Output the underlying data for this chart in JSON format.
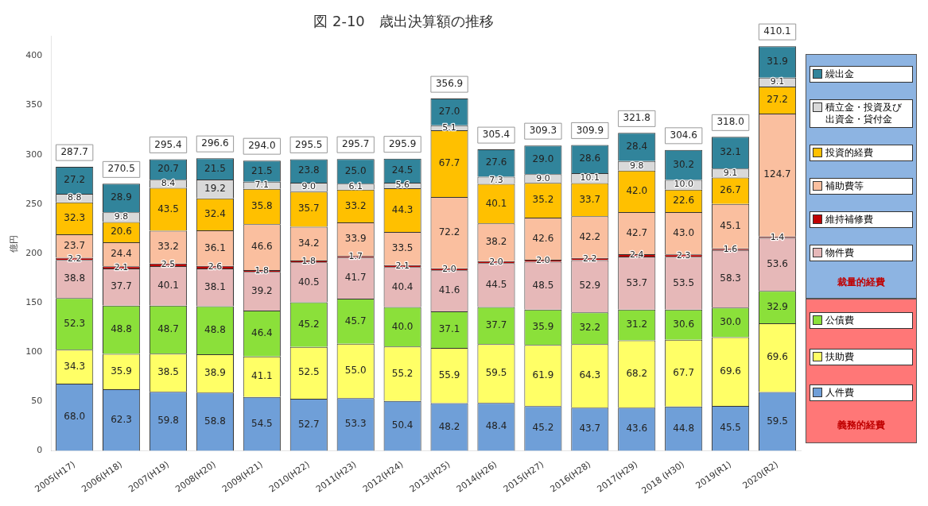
{
  "chart_data": {
    "type": "bar",
    "stacked": true,
    "title": "図 2-10　歳出決算額の推移",
    "ylabel": "億円",
    "categories": [
      "2005(H17)",
      "2006(H18)",
      "2007(H19)",
      "2008(H20)",
      "2009(H21)",
      "2010(H22)",
      "2011(H23)",
      "2012(H24)",
      "2013(H25)",
      "2014(H26)",
      "2015(H27)",
      "2016(H28)",
      "2017(H29)",
      "2018 (H30)",
      "2019(R1)",
      "2020(R2)"
    ],
    "series": [
      {
        "name": "人件費",
        "color": "#6f9fd8",
        "values": [
          68.0,
          62.3,
          59.8,
          58.8,
          54.5,
          52.7,
          53.3,
          50.4,
          48.2,
          48.4,
          45.2,
          43.7,
          43.6,
          44.8,
          45.5,
          59.5
        ],
        "value_labels": [
          "68.0",
          "62.3",
          "59.8",
          "58.8",
          "54.5",
          "52.7",
          "53.3",
          "50.4",
          "48.2",
          "48.4",
          "45.2",
          "43.7",
          "43.6",
          "44.8",
          "45.5",
          "59.5"
        ]
      },
      {
        "name": "扶助費",
        "color": "#ffff66",
        "values": [
          34.3,
          35.9,
          38.5,
          38.9,
          41.1,
          52.5,
          55.0,
          55.2,
          55.9,
          59.5,
          61.9,
          64.3,
          68.2,
          67.7,
          69.6,
          69.6
        ],
        "value_labels": [
          "34.3",
          "35.9",
          "38.5",
          "38.9",
          "41.1",
          "52.5",
          "55.0",
          "55.2",
          "55.9",
          "59.5",
          "61.9",
          "64.3",
          "68.2",
          "67.7",
          "69.6",
          "69.6"
        ]
      },
      {
        "name": "公債費",
        "color": "#8be03a",
        "values": [
          52.3,
          48.8,
          48.7,
          48.8,
          46.4,
          45.2,
          45.7,
          40.0,
          37.1,
          37.7,
          35.9,
          32.2,
          31.2,
          30.6,
          30.0,
          32.9
        ],
        "value_labels": [
          "52.3",
          "48.8",
          "48.7",
          "48.8",
          "46.4",
          "45.2",
          "45.7",
          "40.0",
          "37.1",
          "37.7",
          "35.9",
          "32.2",
          "31.2",
          "30.6",
          "30.0",
          "32.9"
        ]
      },
      {
        "name": "物件費",
        "color": "#e6b8b8",
        "values": [
          38.8,
          37.7,
          40.1,
          38.1,
          39.2,
          40.5,
          41.7,
          40.4,
          41.6,
          44.5,
          48.5,
          52.9,
          53.7,
          53.5,
          58.3,
          53.6
        ],
        "value_labels": [
          "38.8",
          "37.7",
          "40.1",
          "38.1",
          "39.2",
          "40.5",
          "41.7",
          "40.4",
          "41.6",
          "44.5",
          "48.5",
          "52.9",
          "53.7",
          "53.5",
          "58.3",
          "53.6"
        ]
      },
      {
        "name": "維持補修費",
        "color": "#c00000",
        "values": [
          2.2,
          2.1,
          2.5,
          2.6,
          1.8,
          1.8,
          1.7,
          2.1,
          2.0,
          2.0,
          2.0,
          2.2,
          2.4,
          2.3,
          1.6,
          1.4
        ],
        "value_labels": [
          "2.2",
          "2.1",
          "2.5",
          "2.6",
          "1.8",
          "1.8",
          "1.7",
          "2.1",
          "2.0",
          "2.0",
          "2.0",
          "2.2",
          "2.4",
          "2.3",
          "1.6",
          "1.4"
        ]
      },
      {
        "name": "補助費等",
        "color": "#fabf9f",
        "values": [
          23.7,
          24.4,
          33.2,
          36.1,
          46.6,
          34.2,
          33.9,
          33.5,
          72.2,
          38.2,
          42.6,
          42.2,
          42.7,
          43.0,
          45.1,
          124.7
        ],
        "value_labels": [
          "23.7",
          "24.4",
          "33.2",
          "36.1",
          "46.6",
          "34.2",
          "33.9",
          "33.5",
          "72.2",
          "38.2",
          "42.6",
          "42.2",
          "42.7",
          "43.0",
          "45.1",
          "124.7"
        ]
      },
      {
        "name": "投資的経費",
        "color": "#ffc000",
        "values": [
          32.3,
          20.6,
          43.5,
          32.4,
          35.8,
          35.7,
          33.2,
          44.3,
          67.7,
          40.1,
          35.2,
          33.7,
          42.0,
          22.6,
          26.7,
          27.2
        ],
        "value_labels": [
          "32.3",
          "20.6",
          "43.5",
          "32.4",
          "35.8",
          "35.7",
          "33.2",
          "44.3",
          "67.7",
          "40.1",
          "35.2",
          "33.7",
          "42.0",
          "22.6",
          "26.7",
          "27.2"
        ]
      },
      {
        "name": "積立金・投資及び出資金・貸付金",
        "color": "#d9d9d9",
        "values": [
          8.8,
          9.8,
          8.4,
          19.2,
          7.1,
          9.0,
          6.1,
          5.6,
          5.1,
          7.3,
          9.0,
          10.1,
          9.8,
          10.0,
          9.1,
          9.1
        ],
        "value_labels": [
          "8.8",
          "9.8",
          "8.4",
          "19.2",
          "7.1",
          "9.0",
          "6.1",
          "5.6",
          "5.1",
          "7.3",
          "9.0",
          "10.1",
          "9.8",
          "10.0",
          "9.1",
          "9.1"
        ]
      },
      {
        "name": "繰出金",
        "color": "#31849b",
        "values": [
          27.2,
          28.9,
          20.7,
          21.5,
          21.5,
          23.8,
          25.0,
          24.5,
          27.0,
          27.6,
          29.0,
          28.6,
          28.4,
          30.2,
          32.1,
          31.9
        ],
        "value_labels": [
          "27.2",
          "28.9",
          "20.7",
          "21.5",
          "21.5",
          "23.8",
          "25.0",
          "24.5",
          "27.0",
          "27.6",
          "29.0",
          "28.6",
          "28.4",
          "30.2",
          "32.1",
          "31.9"
        ]
      }
    ],
    "totals": [
      "287.7",
      "270.5",
      "295.4",
      "296.6",
      "294.0",
      "295.5",
      "295.7",
      "295.9",
      "356.9",
      "305.4",
      "309.3",
      "309.9",
      "321.8",
      "304.6",
      "318.0",
      "410.1"
    ],
    "ylim": [
      0,
      420
    ],
    "yticks": [
      0,
      50,
      100,
      150,
      200,
      250,
      300,
      350,
      400
    ],
    "grid": false,
    "legend": "right",
    "annotations": [
      "裁量的経費",
      "義務的経費"
    ]
  }
}
